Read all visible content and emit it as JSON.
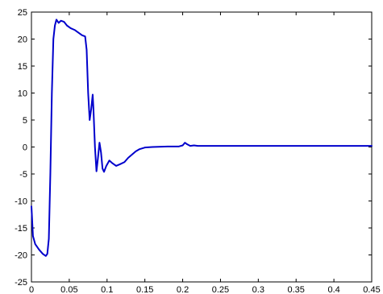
{
  "chart_data": {
    "type": "line",
    "title": "",
    "xlabel": "",
    "ylabel": "",
    "xlim": [
      0,
      0.45
    ],
    "ylim": [
      -25,
      25
    ],
    "grid": false,
    "x_ticks": [
      0,
      0.05,
      0.1,
      0.15,
      0.2,
      0.25,
      0.3,
      0.35,
      0.4,
      0.45
    ],
    "x_tick_labels": [
      "0",
      "0.05",
      "0.1",
      "0.15",
      "0.2",
      "0.25",
      "0.3",
      "0.35",
      "0.4",
      "0.45"
    ],
    "y_ticks": [
      -25,
      -20,
      -15,
      -10,
      -5,
      0,
      5,
      10,
      15,
      20,
      25
    ],
    "y_tick_labels": [
      "-25",
      "-20",
      "-15",
      "-10",
      "-5",
      "0",
      "5",
      "10",
      "15",
      "20",
      "25"
    ],
    "series": [
      {
        "color": "#0000cc",
        "points": [
          [
            0,
            -11
          ],
          [
            0.002,
            -16.5
          ],
          [
            0.005,
            -18
          ],
          [
            0.01,
            -19
          ],
          [
            0.015,
            -19.8
          ],
          [
            0.019,
            -20.2
          ],
          [
            0.021,
            -19.8
          ],
          [
            0.023,
            -17
          ],
          [
            0.025,
            -5
          ],
          [
            0.027,
            10
          ],
          [
            0.029,
            20
          ],
          [
            0.031,
            22.5
          ],
          [
            0.033,
            23.6
          ],
          [
            0.036,
            23.0
          ],
          [
            0.039,
            23.4
          ],
          [
            0.043,
            23.2
          ],
          [
            0.047,
            22.5
          ],
          [
            0.052,
            22
          ],
          [
            0.057,
            21.7
          ],
          [
            0.062,
            21.2
          ],
          [
            0.067,
            20.7
          ],
          [
            0.071,
            20.5
          ],
          [
            0.073,
            18
          ],
          [
            0.075,
            10
          ],
          [
            0.077,
            5
          ],
          [
            0.079,
            7
          ],
          [
            0.081,
            9.7
          ],
          [
            0.082,
            7
          ],
          [
            0.084,
            0
          ],
          [
            0.086,
            -4.5
          ],
          [
            0.088,
            -2
          ],
          [
            0.09,
            0.8
          ],
          [
            0.092,
            -1
          ],
          [
            0.094,
            -4
          ],
          [
            0.096,
            -4.6
          ],
          [
            0.099,
            -3.5
          ],
          [
            0.103,
            -2.5
          ],
          [
            0.107,
            -3
          ],
          [
            0.112,
            -3.5
          ],
          [
            0.117,
            -3.2
          ],
          [
            0.123,
            -2.8
          ],
          [
            0.128,
            -2
          ],
          [
            0.133,
            -1.4
          ],
          [
            0.138,
            -0.8
          ],
          [
            0.143,
            -0.4
          ],
          [
            0.15,
            -0.1
          ],
          [
            0.16,
            0
          ],
          [
            0.18,
            0.1
          ],
          [
            0.195,
            0.1
          ],
          [
            0.2,
            0.3
          ],
          [
            0.203,
            0.8
          ],
          [
            0.206,
            0.5
          ],
          [
            0.21,
            0.2
          ],
          [
            0.215,
            0.3
          ],
          [
            0.22,
            0.2
          ],
          [
            0.25,
            0.2
          ],
          [
            0.3,
            0.2
          ],
          [
            0.35,
            0.2
          ],
          [
            0.4,
            0.2
          ],
          [
            0.45,
            0.2
          ]
        ]
      }
    ]
  }
}
